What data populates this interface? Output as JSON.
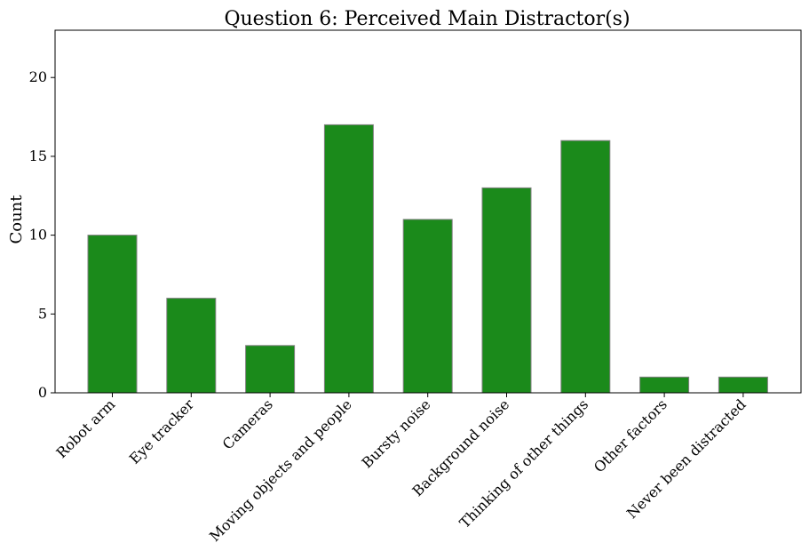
{
  "chart_data": {
    "type": "bar",
    "title": "Question 6: Perceived Main Distractor(s)",
    "xlabel": "",
    "ylabel": "Count",
    "categories": [
      "Robot arm",
      "Eye tracker",
      "Cameras",
      "Moving objects and people",
      "Bursty noise",
      "Background noise",
      "Thinking of other things",
      "Other factors",
      "Never been distracted"
    ],
    "values": [
      10,
      6,
      3,
      17,
      11,
      13,
      16,
      1,
      1
    ],
    "ylim": [
      0,
      23
    ],
    "yticks": [
      0,
      5,
      10,
      15,
      20
    ],
    "grid": false,
    "legend": "none",
    "bar_color": "#1b8a1b",
    "bar_edge_color": "#808080"
  }
}
